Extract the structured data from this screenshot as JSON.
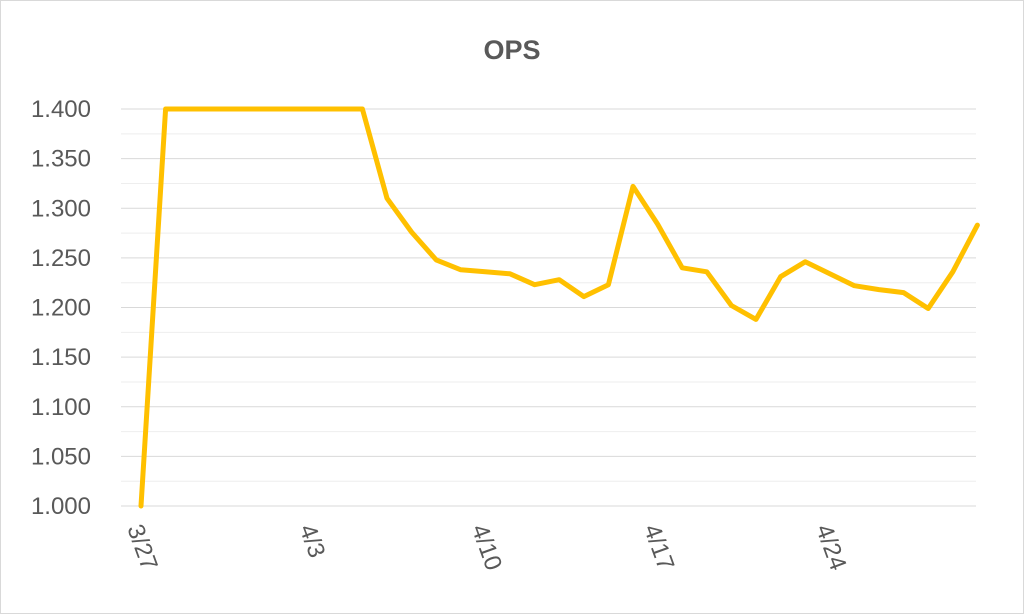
{
  "chart_data": {
    "type": "line",
    "title": "OPS",
    "xlabel": "",
    "ylabel": "",
    "ylim": [
      1.0,
      1.4
    ],
    "yticks": [
      "1.000",
      "1.050",
      "1.100",
      "1.150",
      "1.200",
      "1.250",
      "1.300",
      "1.350",
      "1.400"
    ],
    "xticks": [
      "3/27",
      "4/3",
      "4/10",
      "4/17",
      "4/24"
    ],
    "grid": true,
    "legend": "none",
    "color": "#FFC000",
    "series": [
      {
        "x": [
          "3/27",
          "3/28",
          "4/5",
          "4/6",
          "4/7",
          "4/8",
          "4/9",
          "4/10",
          "4/11",
          "4/12",
          "4/13",
          "4/14",
          "4/15",
          "4/16",
          "4/17",
          "4/18",
          "4/19",
          "4/20",
          "4/21",
          "4/22",
          "4/23",
          "4/24",
          "4/25",
          "4/26",
          "4/27",
          "4/28",
          "4/29",
          "4/30"
        ],
        "values": [
          1.0,
          1.4,
          1.4,
          1.31,
          1.276,
          1.248,
          1.238,
          1.236,
          1.234,
          1.223,
          1.228,
          1.211,
          1.223,
          1.322,
          1.284,
          1.24,
          1.236,
          1.202,
          1.188,
          1.231,
          1.246,
          1.234,
          1.222,
          1.218,
          1.215,
          1.199,
          1.236,
          1.283
        ]
      }
    ]
  }
}
